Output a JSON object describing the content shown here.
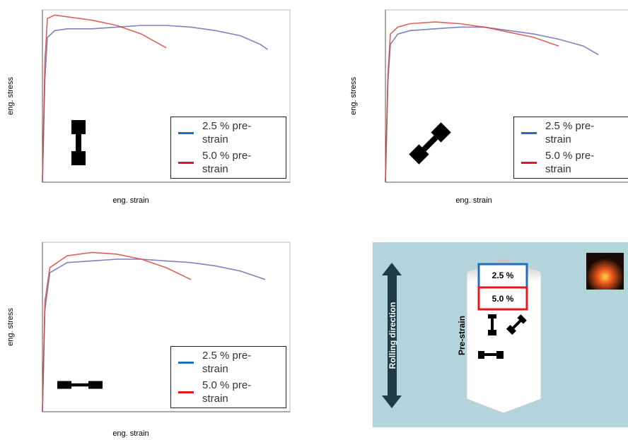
{
  "chart_data": [
    {
      "type": "line",
      "x_label": "eng. strain",
      "y_label": "eng. stress",
      "xlim": [
        0,
        100
      ],
      "ylim": [
        0,
        100
      ],
      "legend": "lower right",
      "x": [
        0,
        1,
        2,
        5,
        10,
        20,
        30,
        40,
        50,
        60,
        70,
        80,
        88,
        91
      ],
      "series": [
        {
          "name": "2.5 % pre-strain",
          "color": "#1f6fc0",
          "line_color": "#6a6ab8",
          "values": [
            0,
            60,
            84,
            88,
            89,
            89,
            90,
            91,
            91,
            90,
            88,
            85,
            80,
            77
          ]
        },
        {
          "name": "5.0 % pre-strain",
          "color": "#e8161b",
          "line_color": "#d9453b",
          "values": [
            0,
            70,
            95,
            97,
            96,
            94,
            91,
            86,
            78,
            null,
            null,
            null,
            null,
            null
          ]
        }
      ]
    },
    {
      "type": "line",
      "x_label": "eng. strain",
      "y_label": "eng. stress",
      "xlim": [
        0,
        100
      ],
      "ylim": [
        0,
        100
      ],
      "legend": "lower right",
      "x": [
        0,
        1,
        2,
        5,
        10,
        20,
        30,
        40,
        50,
        60,
        70,
        80,
        86
      ],
      "series": [
        {
          "name": "2.5 % pre-strain",
          "color": "#1f6fc0",
          "line_color": "#6a6ab8",
          "values": [
            0,
            58,
            80,
            86,
            88,
            89,
            90,
            90,
            88,
            86,
            83,
            79,
            74
          ]
        },
        {
          "name": "5.0 % pre-strain",
          "color": "#e8161b",
          "line_color": "#d9453b",
          "values": [
            0,
            62,
            86,
            90,
            92,
            93,
            92,
            90,
            87,
            84,
            79,
            null,
            null
          ]
        }
      ]
    },
    {
      "type": "line",
      "x_label": "eng. strain",
      "y_label": "eng. stress",
      "xlim": [
        0,
        100
      ],
      "ylim": [
        0,
        100
      ],
      "legend": "lower right",
      "x": [
        0,
        1,
        3,
        10,
        20,
        30,
        40,
        50,
        60,
        70,
        80,
        90
      ],
      "series": [
        {
          "name": "2.5 % pre-strain",
          "color": "#1f6fc0",
          "line_color": "#6a6ab8",
          "values": [
            0,
            60,
            82,
            88,
            89,
            90,
            90,
            89,
            88,
            86,
            83,
            78
          ]
        },
        {
          "name": "5.0 % pre-strain",
          "color": "#e8161b",
          "line_color": "#d9453b",
          "values": [
            0,
            65,
            85,
            92,
            94,
            93,
            90,
            85,
            78,
            null,
            null,
            null
          ]
        }
      ]
    }
  ],
  "diagram": {
    "rolling_direction": "Rolling direction",
    "pre_strain": "Pre-strain",
    "levels": [
      "2.5 %",
      "5.0 %"
    ]
  }
}
